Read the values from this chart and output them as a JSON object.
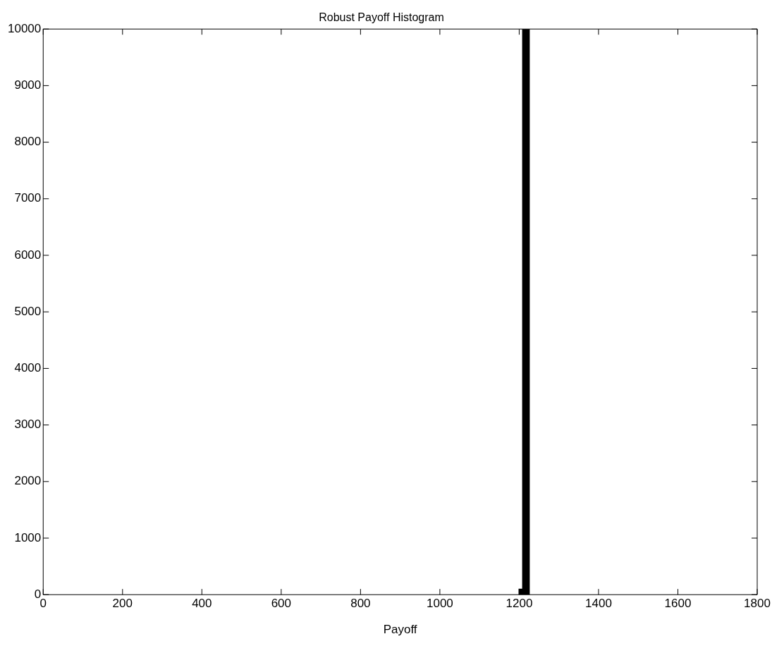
{
  "chart_data": {
    "type": "histogram",
    "title": "Robust Payoff Histogram",
    "xlabel": "Payoff",
    "bins": [
      1199,
      1208,
      1217,
      1226
    ],
    "values": [
      100,
      10000,
      10000
    ],
    "color": "#000000",
    "xlim": [
      0,
      1800
    ],
    "xticks": [
      0,
      200,
      400,
      600,
      800,
      1000,
      1200,
      1400,
      1600,
      1800
    ],
    "ylim": [
      0,
      10000
    ],
    "yticks": [
      0,
      1000,
      2000,
      3000,
      4000,
      5000,
      6000,
      7000,
      8000,
      9000,
      10000
    ]
  }
}
